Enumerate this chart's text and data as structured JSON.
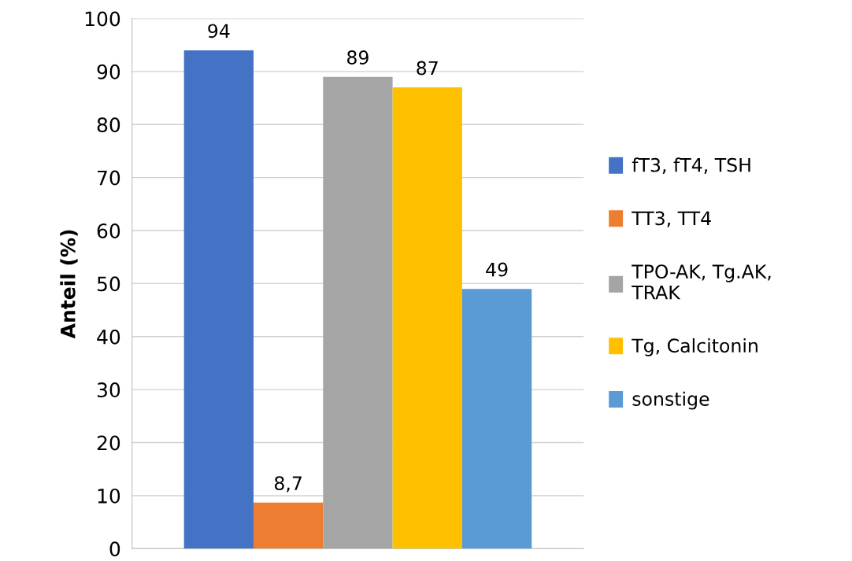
{
  "chart_data": {
    "type": "bar",
    "ylabel": "Anteil (%)",
    "categories": [
      null
    ],
    "series": [
      {
        "name": "fT3, fT4, TSH",
        "color": "#4472c4",
        "values": [
          94
        ],
        "value_labels": [
          "94"
        ]
      },
      {
        "name": "TT3, TT4",
        "color": "#ed7d31",
        "values": [
          8.7
        ],
        "value_labels": [
          "8,7"
        ]
      },
      {
        "name": "TPO-AK, Tg.AK,\nTRAK",
        "color": "#a5a5a5",
        "values": [
          89
        ],
        "value_labels": [
          "89"
        ]
      },
      {
        "name": "Tg, Calcitonin",
        "color": "#ffc000",
        "values": [
          87
        ],
        "value_labels": [
          "87"
        ]
      },
      {
        "name": "sonstige",
        "color": "#5b9bd5",
        "values": [
          49
        ],
        "value_labels": [
          "49"
        ]
      }
    ],
    "ylim": [
      0,
      100
    ],
    "yticks": [
      0,
      10,
      20,
      30,
      40,
      50,
      60,
      70,
      80,
      90,
      100
    ],
    "grid": "y",
    "legend": "right"
  }
}
